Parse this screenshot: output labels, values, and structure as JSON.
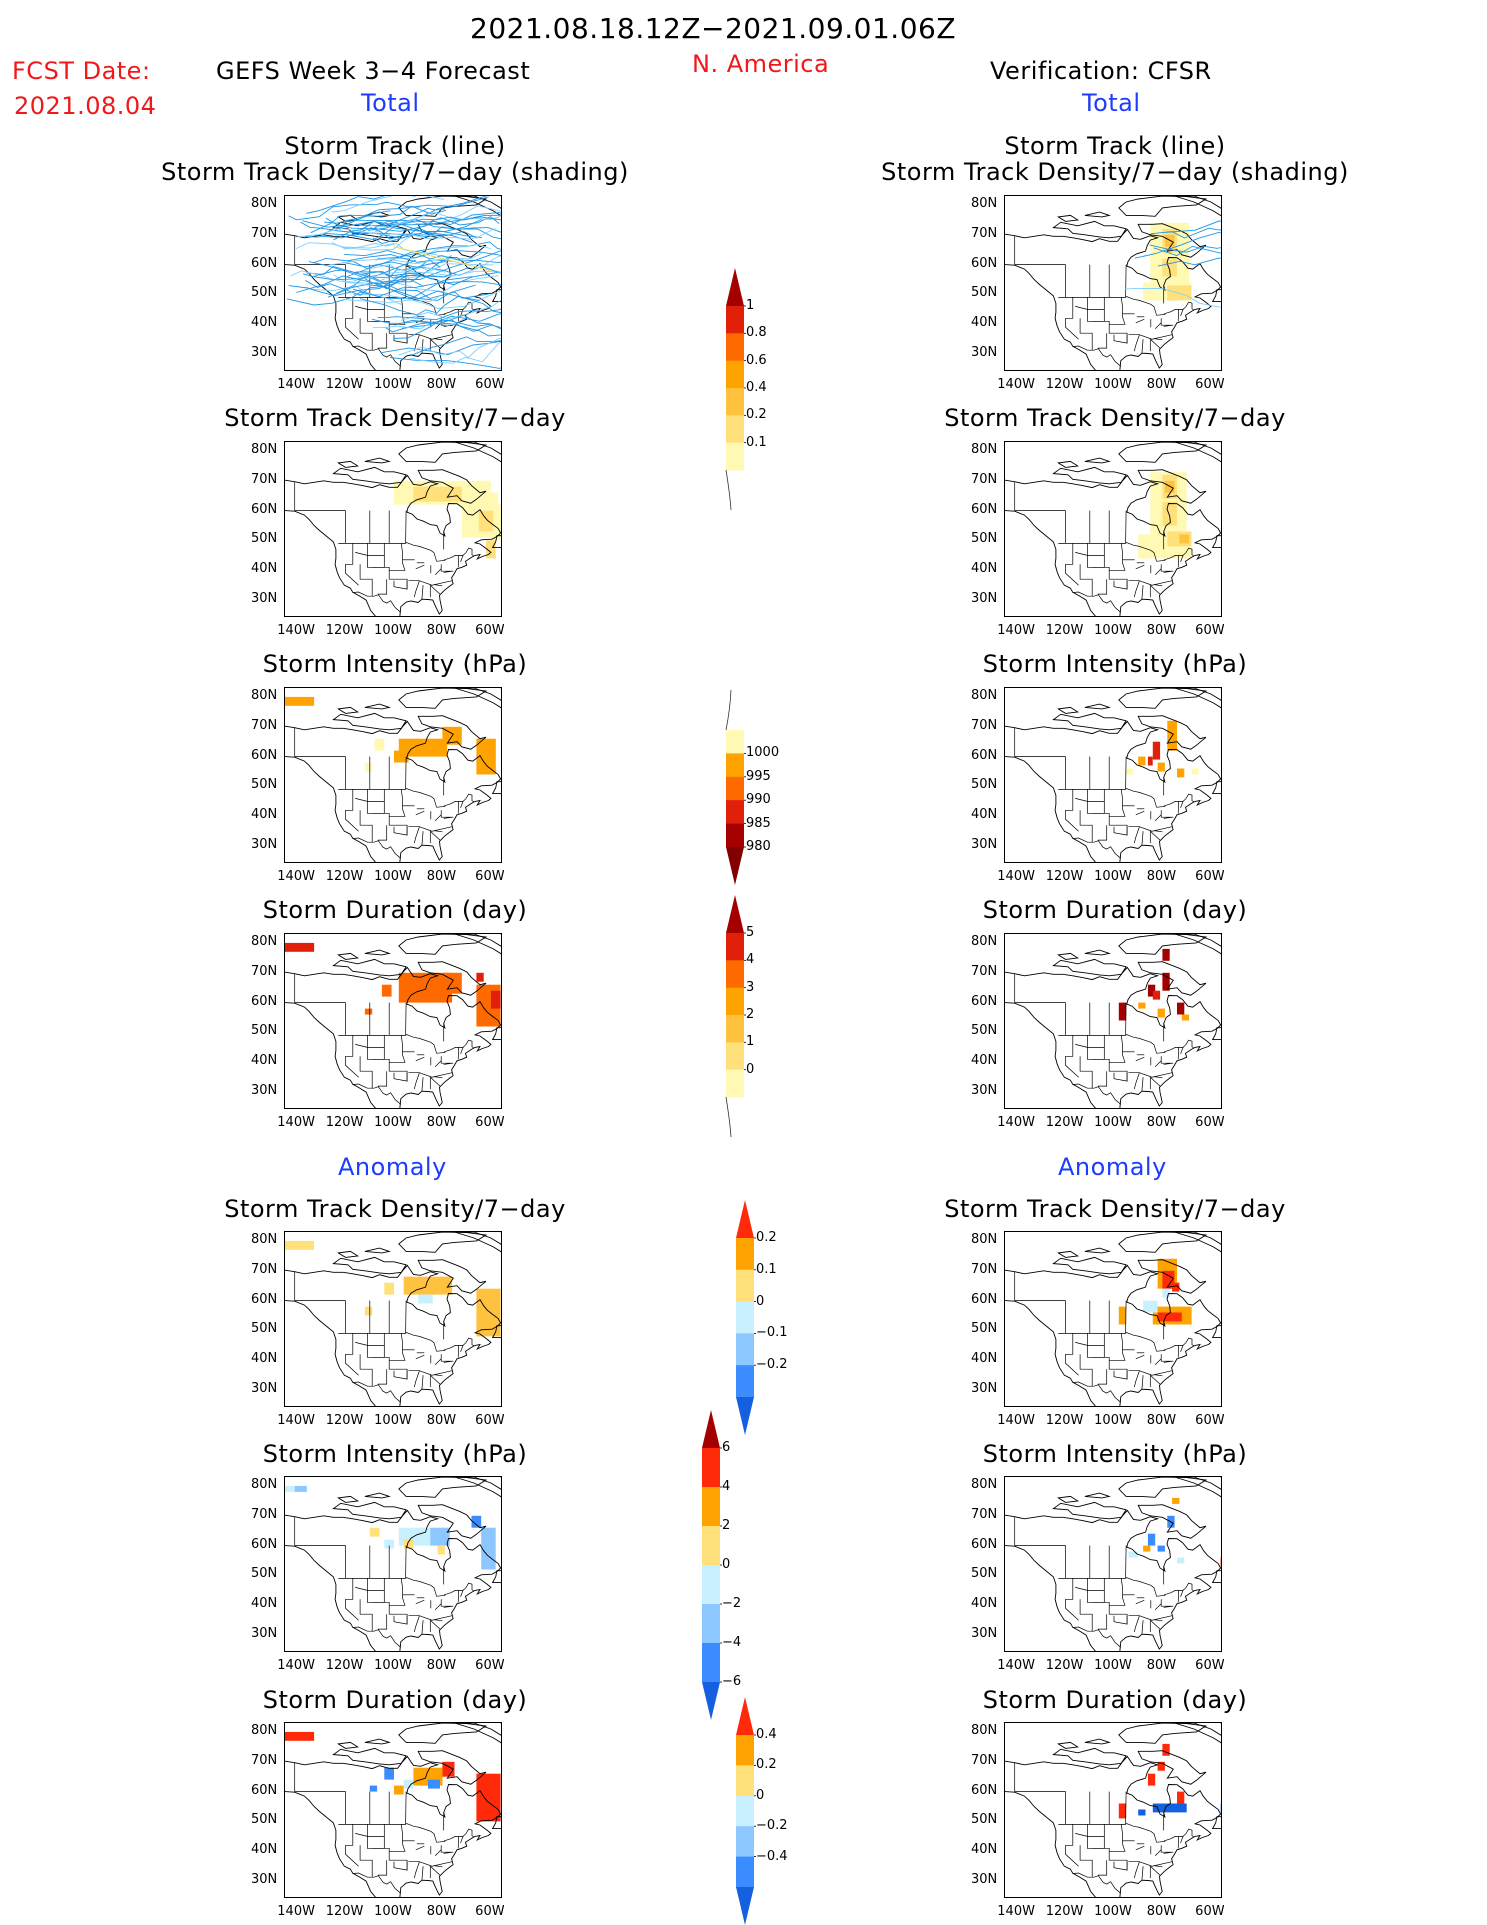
{
  "header": {
    "period": "2021.08.18.12Z−2021.09.01.06Z",
    "fcst_label": "FCST Date:",
    "fcst_date": "2021.08.04",
    "region": "N. America",
    "left_title": "GEFS Week 3−4 Forecast",
    "right_title": "Verification: CFSR"
  },
  "sections": {
    "total": "Total",
    "anomaly": "Anomaly"
  },
  "panel_titles": {
    "track_line": "Storm Track (line)",
    "track_density_shading": "Storm Track Density/7−day (shading)",
    "track_density": "Storm Track Density/7−day",
    "intensity": "Storm Intensity (hPa)",
    "duration": "Storm Duration (day)"
  },
  "axes": {
    "lat_ticks": [
      "80N",
      "70N",
      "60N",
      "50N",
      "40N",
      "30N"
    ],
    "lon_ticks": [
      "140W",
      "120W",
      "100W",
      "80W",
      "60W"
    ]
  },
  "colorbars": {
    "track_density_total": {
      "labels": [
        "1",
        "0.8",
        "0.6",
        "0.4",
        "0.2",
        "0.1"
      ],
      "colors": [
        "#a50000",
        "#e1200a",
        "#ff6a00",
        "#ffa300",
        "#ffc23e",
        "#ffe07a",
        "#fff9b4"
      ]
    },
    "intensity_total": {
      "labels": [
        "1000",
        "995",
        "990",
        "985",
        "980"
      ],
      "colors": [
        "#fff9b4",
        "#ffa300",
        "#ff6a00",
        "#e1200a",
        "#a50000",
        "#820000"
      ]
    },
    "duration_total": {
      "labels": [
        "5",
        "4",
        "3",
        "2",
        "1",
        "0"
      ],
      "colors": [
        "#a50000",
        "#e1200a",
        "#ff6a00",
        "#ffa300",
        "#ffc23e",
        "#ffe07a",
        "#fff9b4"
      ]
    },
    "track_density_anomaly": {
      "labels": [
        "0.2",
        "0.1",
        "0",
        "−0.1",
        "−0.2"
      ],
      "colors": [
        "#ff2a0a",
        "#ffa300",
        "#ffe07a",
        "#c8f0ff",
        "#8cc8ff",
        "#3a8cff",
        "#1460e0"
      ]
    },
    "intensity_anomaly": {
      "labels": [
        "6",
        "4",
        "2",
        "0",
        "−2",
        "−4",
        "−6"
      ],
      "colors": [
        "#a50000",
        "#ff2a0a",
        "#ffa300",
        "#ffe07a",
        "#c8f0ff",
        "#8cc8ff",
        "#3a8cff",
        "#1460e0"
      ]
    },
    "duration_anomaly": {
      "labels": [
        "0.4",
        "0.2",
        "0",
        "−0.2",
        "−0.4"
      ],
      "colors": [
        "#ff2a0a",
        "#ffa300",
        "#ffe07a",
        "#c8f0ff",
        "#8cc8ff",
        "#3a8cff",
        "#1460e0"
      ]
    }
  },
  "colors": {
    "title_red": "#f01818",
    "section_blue": "#1e3cff",
    "track_line": "#1e96e6",
    "track_line_light": "#7fd0ff"
  }
}
